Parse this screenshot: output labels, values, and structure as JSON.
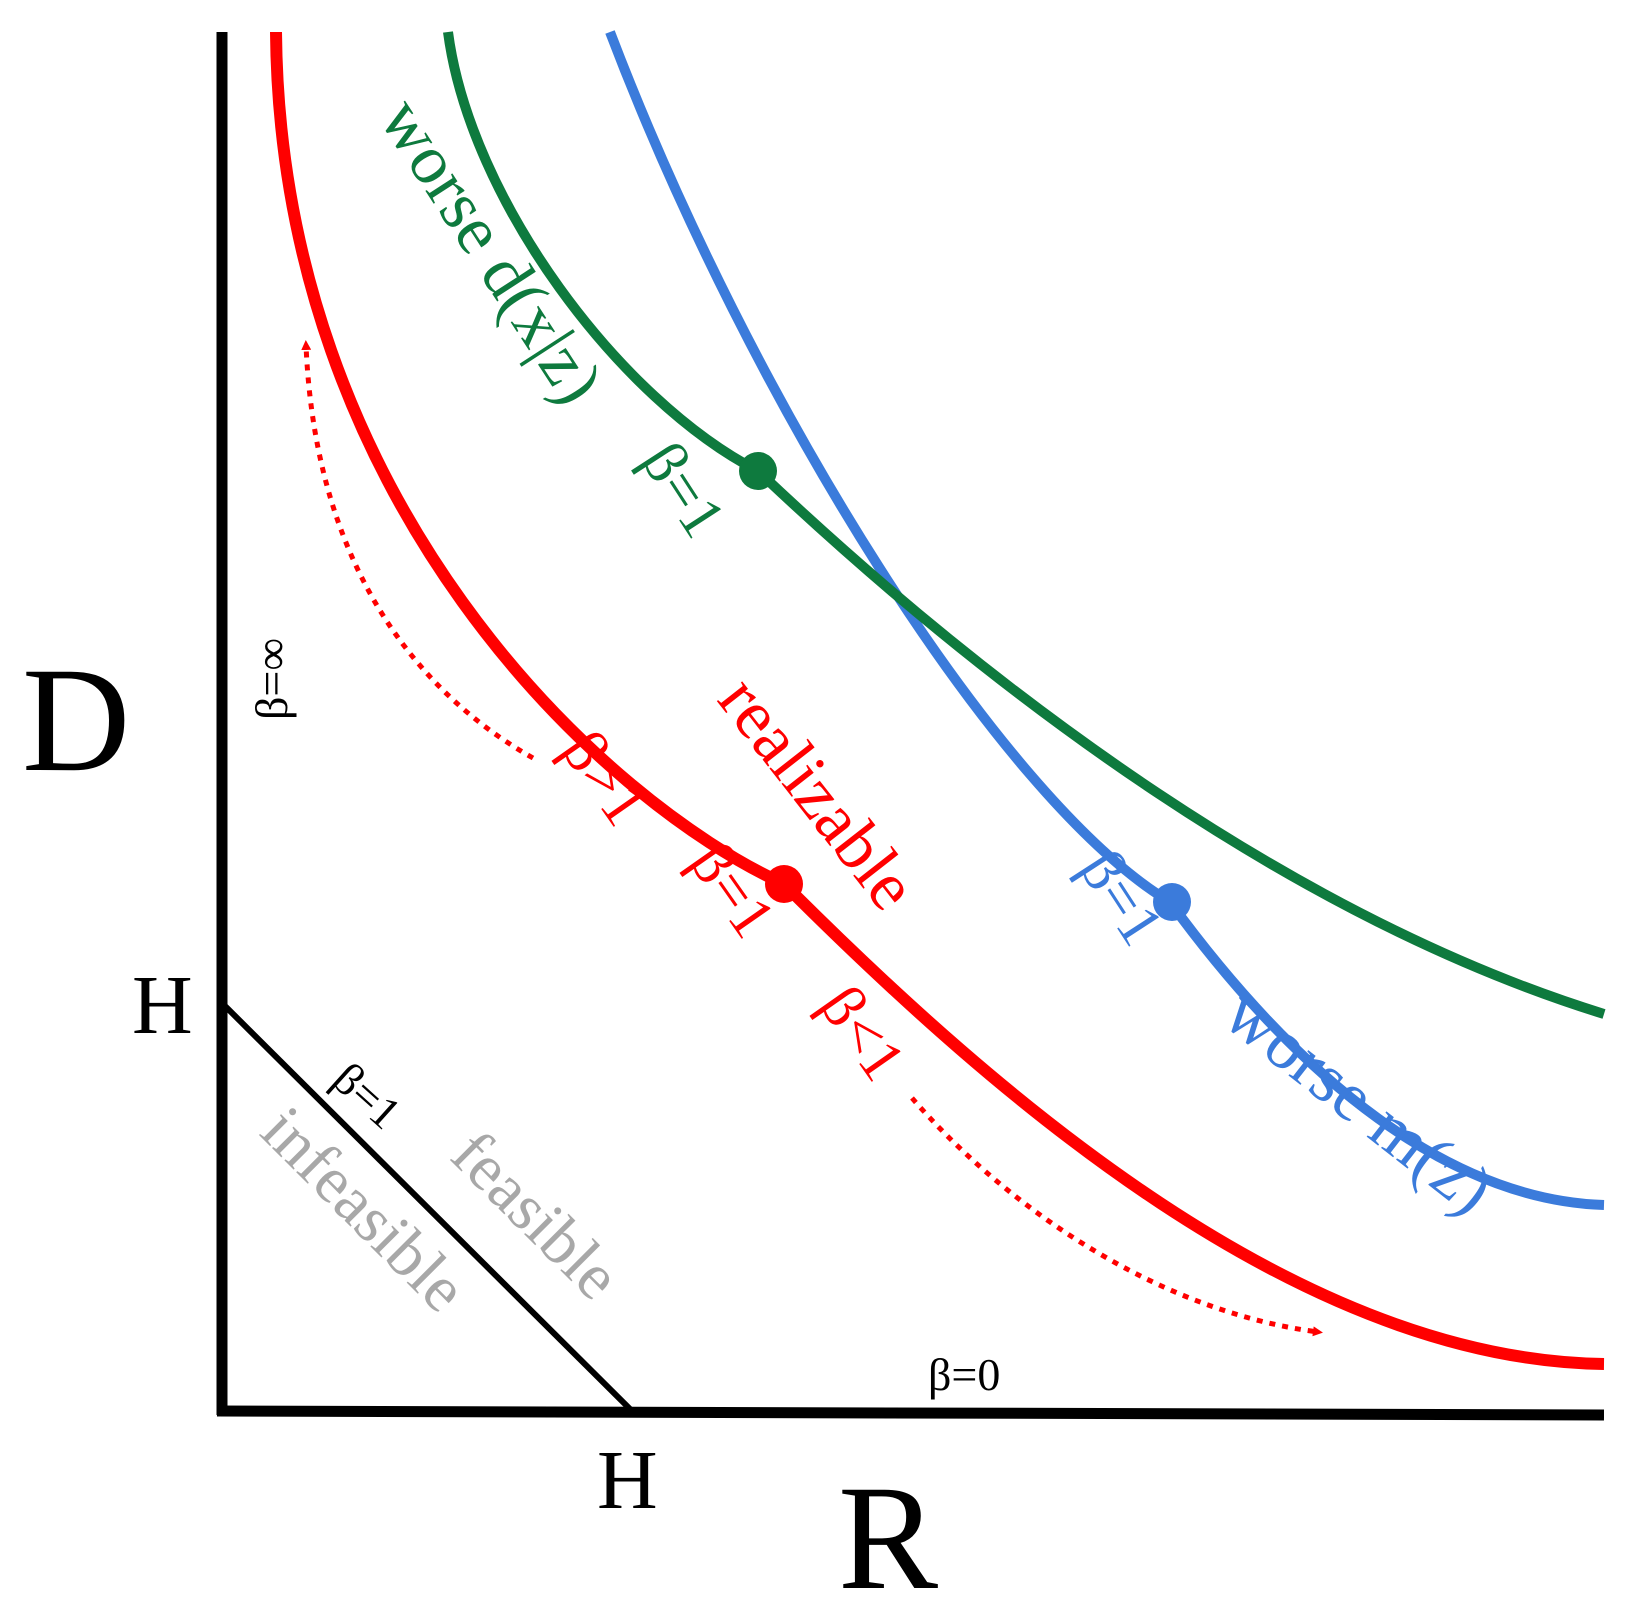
{
  "axes": {
    "x_label": "R",
    "y_label": "D",
    "x_tick": "H",
    "y_tick": "H",
    "axis_color": "#000000"
  },
  "bound": {
    "label": "β=1",
    "infeasible_label": "infeasible",
    "feasible_label": "feasible",
    "region_color": "#a8a8a8"
  },
  "edge_labels": {
    "x_axis_beta": "β=0",
    "y_axis_beta": "β=∞"
  },
  "curves": {
    "realizable": {
      "label": "realizable",
      "color": "#ff0000",
      "point_label": "β=1",
      "upper_label": "β>1",
      "lower_label": "β<1"
    },
    "worse_decoder": {
      "label": "worse d(x|z)",
      "color": "#0e7a3e",
      "point_label": "β=1"
    },
    "worse_marginal": {
      "label": "worse m(z)",
      "color": "#3b7bdb",
      "point_label": "β=1"
    }
  }
}
